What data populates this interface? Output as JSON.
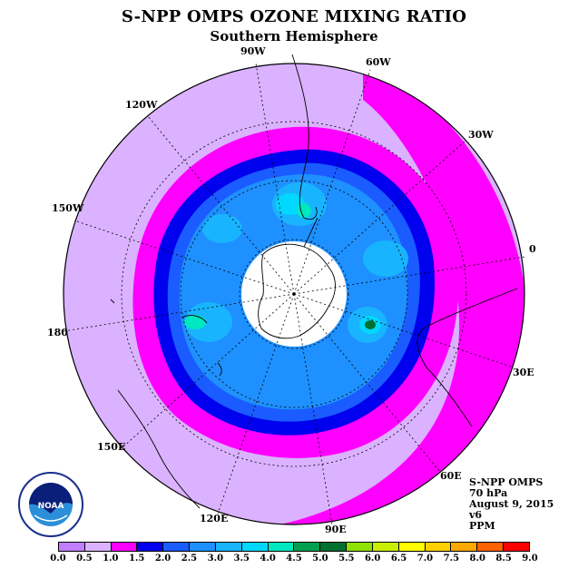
{
  "title": "S-NPP OMPS OZONE MIXING RATIO",
  "subtitle": "Southern Hemisphere",
  "longitude_labels": [
    "90W",
    "60W",
    "30W",
    "0",
    "30E",
    "60E",
    "90E",
    "120E",
    "150E",
    "180",
    "150W",
    "120W"
  ],
  "info": {
    "instrument": "S-NPP OMPS",
    "pressure": "70 hPa",
    "date": "August 9, 2015",
    "version": "v6",
    "units": "PPM"
  },
  "logo_text": "NOAA",
  "colorbar": {
    "ticks": [
      "0.0",
      "0.5",
      "1.0",
      "1.5",
      "2.0",
      "2.5",
      "3.0",
      "3.5",
      "4.0",
      "4.5",
      "5.0",
      "5.5",
      "6.0",
      "6.5",
      "7.0",
      "7.5",
      "8.0",
      "8.5",
      "9.0"
    ],
    "colors": [
      "#c07fff",
      "#dbb2ff",
      "#ff00ff",
      "#0000ee",
      "#1a5cff",
      "#1e90ff",
      "#19b4ff",
      "#00d8ff",
      "#00e8c0",
      "#00a050",
      "#007030",
      "#90e000",
      "#c8f000",
      "#ffff00",
      "#ffd000",
      "#ffa800",
      "#ff6000",
      "#ff0000",
      "#b00000",
      "#8b5a2b"
    ]
  },
  "colors": {
    "outer": "#dbb2ff",
    "ring_magenta": "#ff00ff",
    "ring_blue": "#0000ee",
    "ring_mid": "#1a5cff",
    "inner_blue": "#1e90ff",
    "light_blue": "#19b4ff",
    "cyan": "#00d8ff",
    "pole_hole": "#ffffff"
  }
}
